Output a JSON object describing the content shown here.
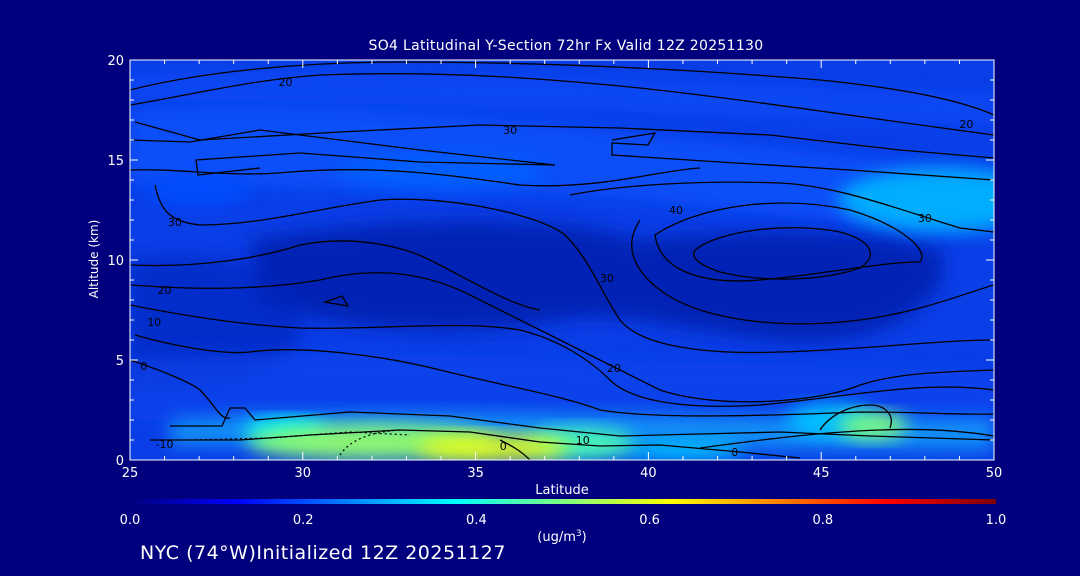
{
  "chart_data": {
    "type": "heatmap",
    "title": "SO4 Latitudinal Y-Section 72hr  Fx Valid 12Z 20251130",
    "xlabel": "Latitude",
    "ylabel": "Altitude (km)",
    "xlim": [
      25,
      50
    ],
    "ylim": [
      0,
      20
    ],
    "x_ticks": [
      "25",
      "30",
      "35",
      "40",
      "45",
      "50"
    ],
    "y_ticks": [
      "0",
      "5",
      "10",
      "15",
      "20"
    ],
    "colorbar": {
      "label_text": "(ug/m",
      "label_exp": "3",
      "label_close": ")",
      "range": [
        0.0,
        1.0
      ],
      "ticks": [
        "0.0",
        "0.2",
        "0.4",
        "0.6",
        "0.8",
        "1.0"
      ]
    },
    "field_blobs": [
      {
        "lat": 32.0,
        "alt": 0.9,
        "value": 0.52,
        "rx": 3.6,
        "ry": 0.9
      },
      {
        "lat": 35.5,
        "alt": 0.6,
        "value": 0.6,
        "rx": 2.2,
        "ry": 0.7
      },
      {
        "lat": 38.0,
        "alt": 0.8,
        "value": 0.45,
        "rx": 1.6,
        "ry": 0.8
      },
      {
        "lat": 29.5,
        "alt": 1.5,
        "value": 0.38,
        "rx": 1.2,
        "ry": 0.6
      },
      {
        "lat": 41.0,
        "alt": 0.5,
        "value": 0.32,
        "rx": 1.8,
        "ry": 0.5
      },
      {
        "lat": 46.5,
        "alt": 1.7,
        "value": 0.5,
        "rx": 1.0,
        "ry": 0.7
      },
      {
        "lat": 45.3,
        "alt": 2.0,
        "value": 0.32,
        "rx": 1.3,
        "ry": 0.8
      },
      {
        "lat": 48.5,
        "alt": 13.0,
        "value": 0.3,
        "rx": 3.0,
        "ry": 1.6
      },
      {
        "lat": 34.0,
        "alt": 14.4,
        "value": 0.22,
        "rx": 3.0,
        "ry": 0.9
      },
      {
        "lat": 27.0,
        "alt": 13.5,
        "value": 0.2,
        "rx": 1.5,
        "ry": 0.8
      }
    ],
    "contour_labels": [
      {
        "text": "20",
        "lat": 29.5,
        "alt": 18.9
      },
      {
        "text": "30",
        "lat": 36.0,
        "alt": 16.5
      },
      {
        "text": "20",
        "lat": 49.2,
        "alt": 16.8
      },
      {
        "text": "30",
        "lat": 26.3,
        "alt": 11.9
      },
      {
        "text": "40",
        "lat": 40.8,
        "alt": 12.5
      },
      {
        "text": "30",
        "lat": 48.0,
        "alt": 12.1
      },
      {
        "text": "30",
        "lat": 38.8,
        "alt": 9.1
      },
      {
        "text": "20",
        "lat": 26.0,
        "alt": 8.5
      },
      {
        "text": "10",
        "lat": 25.7,
        "alt": 6.9
      },
      {
        "text": "0",
        "lat": 25.4,
        "alt": 4.7
      },
      {
        "text": "20",
        "lat": 39.0,
        "alt": 4.6
      },
      {
        "text": "-10",
        "lat": 26.0,
        "alt": 0.8
      },
      {
        "text": "0",
        "lat": 35.8,
        "alt": 0.7
      },
      {
        "text": "10",
        "lat": 38.1,
        "alt": 1.0
      },
      {
        "text": "0",
        "lat": 42.5,
        "alt": 0.4
      }
    ]
  },
  "footer": {
    "text": "NYC (74°W)Initialized 12Z 20251127"
  }
}
